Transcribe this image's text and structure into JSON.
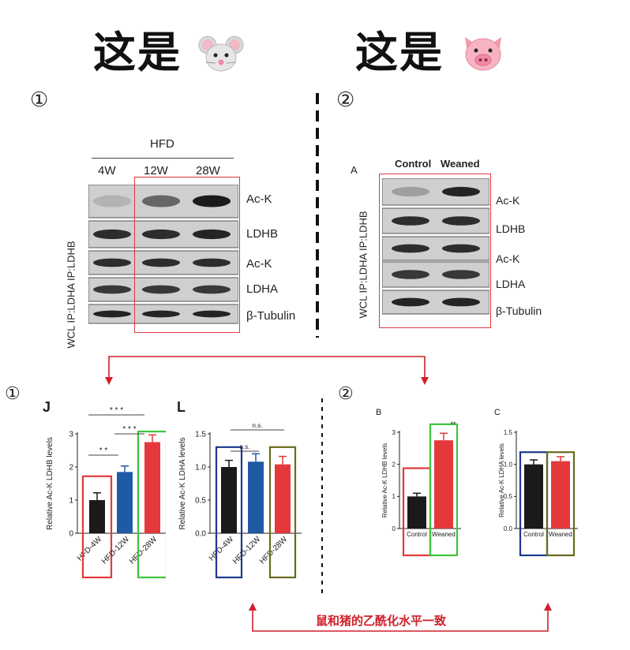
{
  "titles": {
    "mouse_text": "这是",
    "mouse_emoji": "🐭",
    "pig_text": "这是",
    "pig_emoji": "🐷"
  },
  "panel_markers": {
    "top_left": "①",
    "top_right": "②",
    "bottom_left": "①",
    "bottom_right": "②"
  },
  "mouse_blot": {
    "group_label": "HFD",
    "lanes": [
      "4W",
      "12W",
      "28W"
    ],
    "bands": [
      "Ac-K",
      "LDHB",
      "Ac-K",
      "LDHA",
      "β-Tubulin"
    ],
    "side_labels": [
      "WCL",
      "IP:LDHA",
      "IP:LDHB"
    ]
  },
  "pig_blot": {
    "panel_letter": "A",
    "lanes": [
      "Control",
      "Weaned"
    ],
    "bands": [
      "Ac-K",
      "LDHB",
      "Ac-K",
      "LDHA",
      "β-Tubulin"
    ],
    "side_labels": [
      "WCL",
      "IP:LDHA",
      "IP:LDHB"
    ]
  },
  "bottom_caption": "鼠和猪的乙酰化水平一致",
  "colors": {
    "red": "#e5383b",
    "blue": "#1f5aa6",
    "black": "#1a1a1a",
    "green": "#3ec43e",
    "navy": "#1b3a8c",
    "olive": "#6b6a1e",
    "annot_red": "#d0202a"
  },
  "chart_data": [
    {
      "panel": "J",
      "type": "bar",
      "categories": [
        "HFD-4W",
        "HFD-12W",
        "HFD-28W"
      ],
      "values": [
        1.0,
        1.85,
        2.75
      ],
      "errors": [
        0.22,
        0.18,
        0.22
      ],
      "colors": [
        "#1a1a1a",
        "#1f5aa6",
        "#e5383b"
      ],
      "ylabel": "Relative Ac-K LDHB levels",
      "ylim": [
        0,
        3
      ],
      "yticks": [
        "0",
        "1",
        "2",
        "3"
      ],
      "significance": [
        "* *",
        "* * *",
        "* * *"
      ]
    },
    {
      "panel": "L",
      "type": "bar",
      "categories": [
        "HFD-4W",
        "HFD-12W",
        "HFD-28W"
      ],
      "values": [
        1.0,
        1.08,
        1.04
      ],
      "errors": [
        0.1,
        0.12,
        0.12
      ],
      "colors": [
        "#1a1a1a",
        "#1f5aa6",
        "#e5383b"
      ],
      "ylabel": "Relative Ac-K LDHA levels",
      "ylim": [
        0,
        1.5
      ],
      "yticks": [
        "0.0",
        "0.5",
        "1.0",
        "1.5"
      ],
      "significance": [
        "n.s.",
        "n.s."
      ]
    },
    {
      "panel": "B",
      "type": "bar",
      "categories": [
        "Control",
        "Weaned"
      ],
      "values": [
        1.0,
        2.75
      ],
      "errors": [
        0.1,
        0.22
      ],
      "colors": [
        "#1a1a1a",
        "#e5383b"
      ],
      "ylabel": "Relative Ac-K LDHB levels",
      "ylim": [
        0,
        3
      ],
      "yticks": [
        "0",
        "1",
        "2",
        "3"
      ],
      "significance": [
        "**"
      ]
    },
    {
      "panel": "C",
      "type": "bar",
      "categories": [
        "Control",
        "Weaned"
      ],
      "values": [
        1.0,
        1.05
      ],
      "errors": [
        0.07,
        0.07
      ],
      "colors": [
        "#1a1a1a",
        "#e5383b"
      ],
      "ylabel": "Relative Ac-K LDHA levels",
      "ylim": [
        0,
        1.5
      ],
      "yticks": [
        "0.0",
        "0.5",
        "1.0",
        "1.5"
      ],
      "significance": []
    }
  ]
}
